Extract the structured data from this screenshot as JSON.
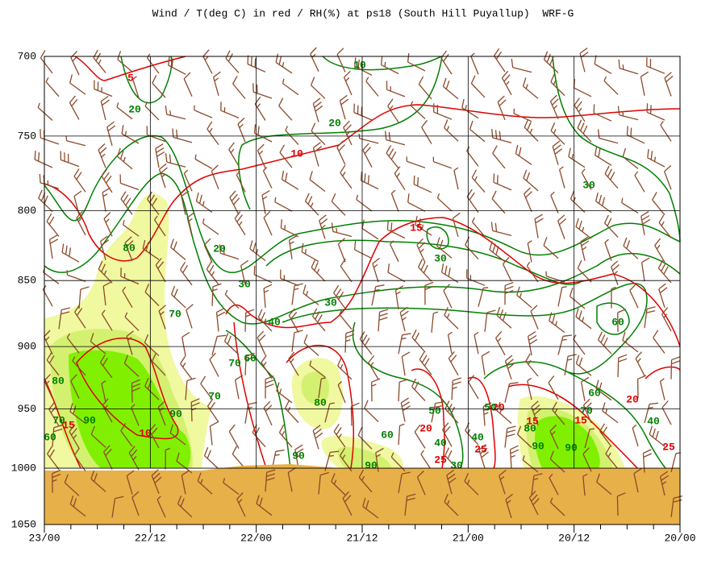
{
  "chart_data": {
    "type": "contour",
    "title": "Wind / T(deg C) in red / RH(%) at ps18 (South Hill Puyallup)  WRF-G",
    "categories": [
      "23/00",
      "22/12",
      "22/00",
      "21/12",
      "21/00",
      "20/12",
      "20/00"
    ],
    "ylim": [
      700,
      1050
    ],
    "yticks": [
      700,
      750,
      800,
      850,
      900,
      950,
      1000,
      1050
    ],
    "log_y": true,
    "y_inverted": true,
    "grid": true,
    "temperature_color": "#e00000",
    "rh_color": "#008000",
    "wind_color": "#8b4a2b",
    "temperature_labels": [
      5,
      10,
      15,
      10,
      15,
      20,
      25,
      20,
      25,
      25,
      20,
      15,
      15
    ],
    "rh_labels": [
      10,
      20,
      20,
      30,
      80,
      20,
      30,
      30,
      30,
      70,
      40,
      60,
      60,
      70,
      80,
      70,
      60,
      80,
      90,
      70,
      90,
      70,
      50,
      60,
      60,
      40,
      40,
      40,
      90,
      90,
      90,
      90,
      30,
      80,
      50
    ]
  }
}
